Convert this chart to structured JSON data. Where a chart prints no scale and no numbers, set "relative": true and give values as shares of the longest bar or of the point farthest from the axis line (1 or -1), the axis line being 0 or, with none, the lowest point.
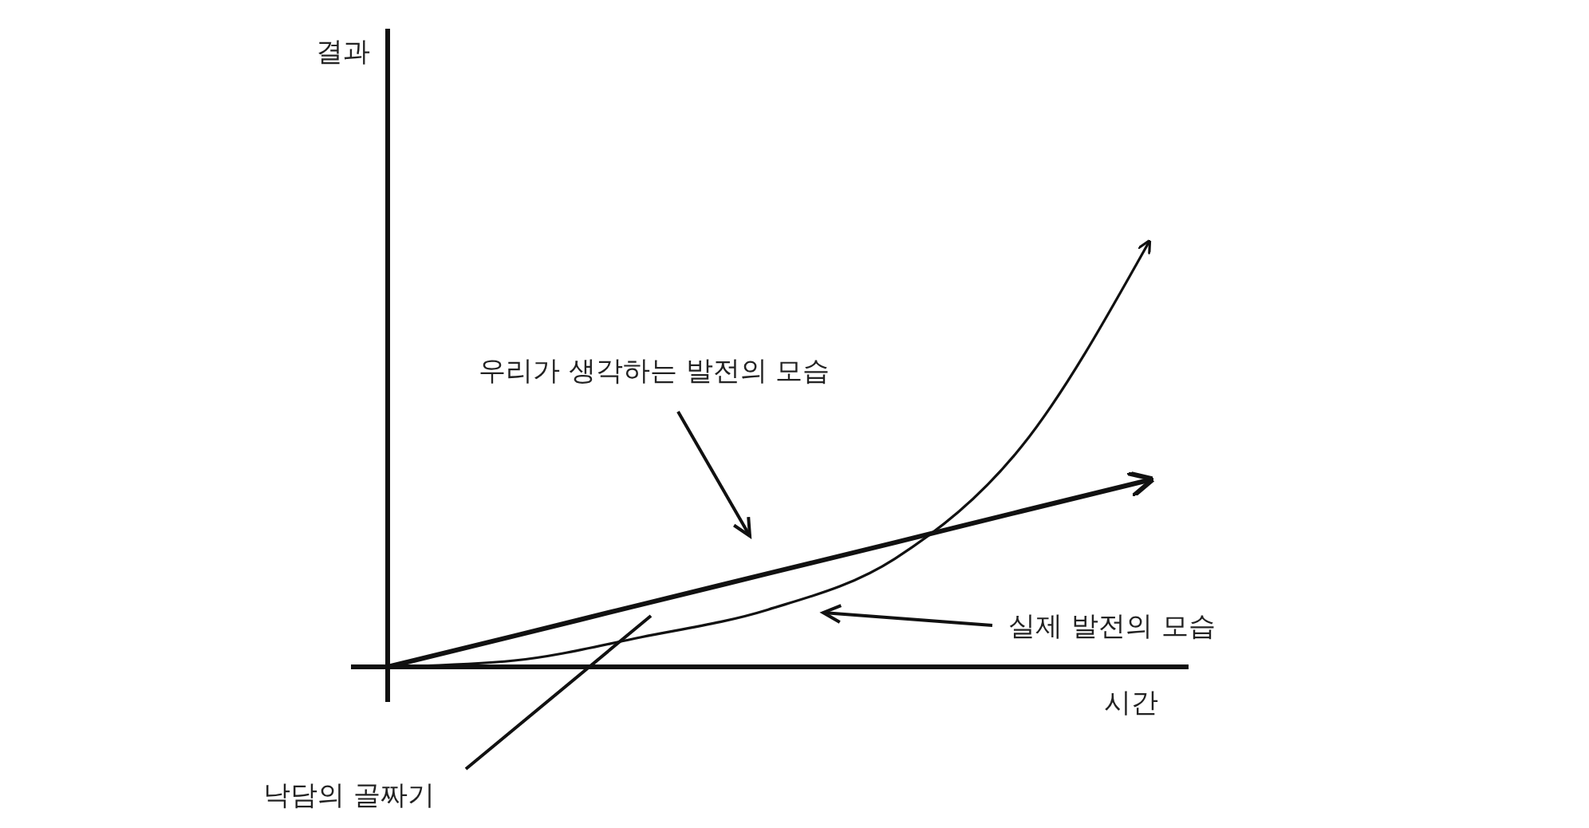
{
  "chart_data": {
    "type": "line",
    "relative": true,
    "xlabel": "시간",
    "categories": [
      null,
      null,
      null,
      null,
      null,
      null,
      null
    ],
    "series": [
      {
        "color": "#111111",
        "values": [
          0,
          0.073,
          0.147,
          0.22,
          0.293,
          0.367,
          0.44
        ]
      },
      {
        "color": "#111111",
        "values": [
          0,
          0.015,
          0.07,
          0.135,
          0.255,
          0.52,
          1
        ]
      }
    ],
    "annotations": [
      "우리가 생각하는 발전의 모습",
      "실제 발전의 모습",
      "낙담의 골짜기",
      "결과"
    ]
  }
}
